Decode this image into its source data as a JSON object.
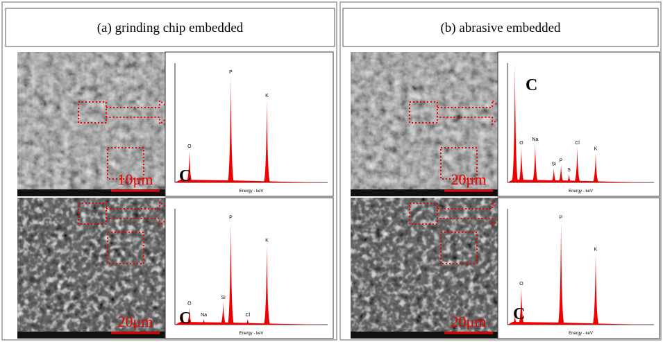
{
  "panels": [
    {
      "title": "(a) grinding chip embedded",
      "rows": [
        {
          "scale_bar": "10μm",
          "marker": "C",
          "peaks": [
            "O",
            "P",
            "K"
          ]
        },
        {
          "scale_bar": "20μm",
          "marker": "C",
          "peaks": [
            "O",
            "Na",
            "Si",
            "P",
            "Cl",
            "K"
          ]
        }
      ]
    },
    {
      "title": "(b) abrasive embedded",
      "rows": [
        {
          "scale_bar": "20μm",
          "marker": "C",
          "peaks": [
            "O",
            "Na",
            "Si",
            "P",
            "S",
            "Cl",
            "K"
          ]
        },
        {
          "scale_bar": "20μm",
          "marker": "C",
          "peaks": [
            "O",
            "P",
            "K"
          ]
        }
      ]
    }
  ],
  "spectrum_xlabel": "Energy - keV"
}
